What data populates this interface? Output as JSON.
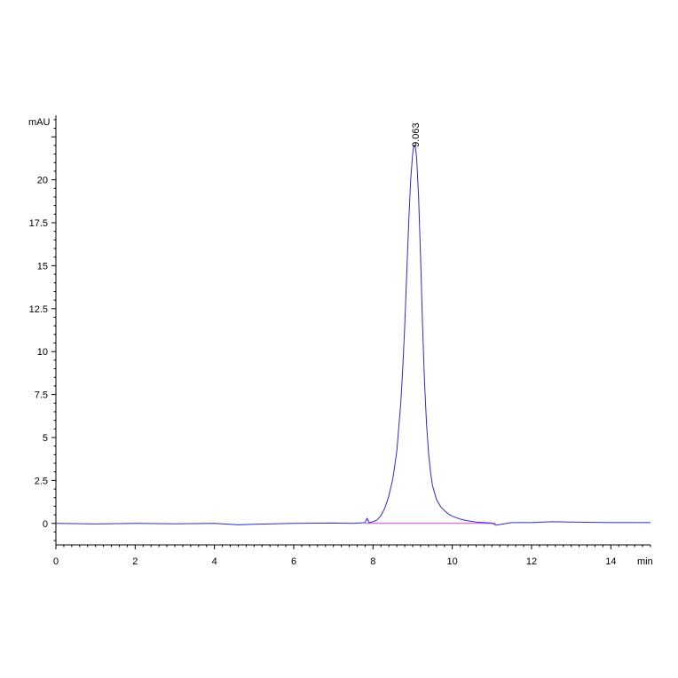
{
  "chart_data": {
    "type": "line",
    "title": "",
    "xlabel": "min",
    "ylabel": "mAU",
    "xlim": [
      0,
      15
    ],
    "ylim": [
      -1.25,
      23.75
    ],
    "grid": false,
    "legend": "none",
    "x_ticks": [
      "0",
      "2",
      "4",
      "6",
      "8",
      "10",
      "12",
      "14"
    ],
    "y_ticks": [
      "0",
      "2.5",
      "5",
      "7.5",
      "10",
      "12.5",
      "15",
      "17.5",
      "20"
    ],
    "peak": {
      "x": 9.063,
      "y": 22.0,
      "label": "9.063"
    },
    "series": [
      {
        "color": "#2b2bd6",
        "x": [
          0,
          1,
          2,
          3,
          4,
          4.6,
          5,
          6,
          7,
          7.5,
          7.8,
          7.85,
          7.9,
          8.0,
          8.1,
          8.2,
          8.3,
          8.4,
          8.5,
          8.6,
          8.7,
          8.75,
          8.8,
          8.85,
          8.9,
          8.95,
          9.0,
          9.03,
          9.063,
          9.1,
          9.15,
          9.2,
          9.25,
          9.3,
          9.35,
          9.4,
          9.45,
          9.5,
          9.6,
          9.7,
          9.8,
          9.9,
          10.0,
          10.2,
          10.4,
          10.6,
          10.8,
          11.0,
          11.1,
          11.5,
          12,
          12.5,
          13,
          14,
          15
        ],
        "y": [
          0.0,
          -0.03,
          0.0,
          -0.02,
          0.0,
          -0.08,
          -0.05,
          0.0,
          0.02,
          0.0,
          0.05,
          0.3,
          0.05,
          0.1,
          0.2,
          0.45,
          0.9,
          1.6,
          2.6,
          4.2,
          7.0,
          9.0,
          11.5,
          14.5,
          17.5,
          20.0,
          21.5,
          22.0,
          22.0,
          21.3,
          19.0,
          15.5,
          11.5,
          8.2,
          5.8,
          4.1,
          3.0,
          2.2,
          1.4,
          1.0,
          0.75,
          0.55,
          0.42,
          0.25,
          0.15,
          0.08,
          0.05,
          0.02,
          -0.1,
          0.05,
          0.05,
          0.1,
          0.08,
          0.05,
          0.05
        ]
      },
      {
        "color": "#e040e0",
        "x": [
          7.8,
          11.1
        ],
        "y": [
          0.0,
          0.0
        ]
      }
    ]
  }
}
